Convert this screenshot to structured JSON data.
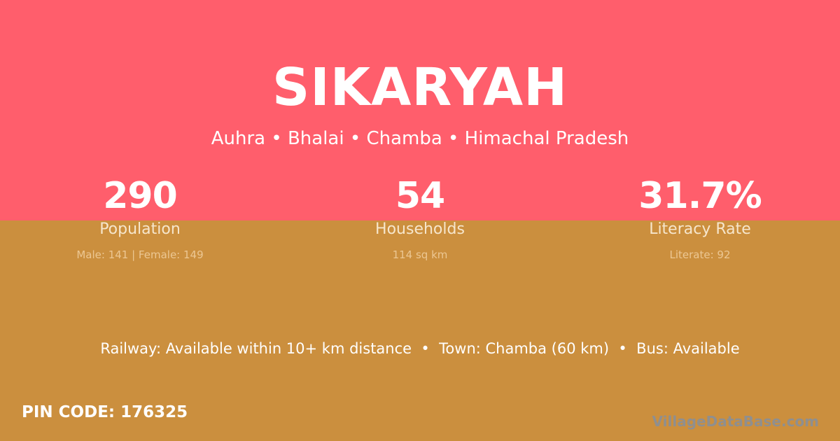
{
  "village": {
    "name": "SIKARYAH",
    "location": "Auhra • Bhalai • Chamba • Himachal Pradesh"
  },
  "stats": [
    {
      "value": "290",
      "label": "Population",
      "detail": "Male: 141 | Female: 149"
    },
    {
      "value": "54",
      "label": "Households",
      "detail": "114 sq km"
    },
    {
      "value": "31.7%",
      "label": "Literacy Rate",
      "detail": "Literate: 92"
    }
  ],
  "transport": "Railway: Available within 10+ km distance  •  Town: Chamba (60 km)  •  Bus: Available",
  "pin_code": "PIN CODE: 176325",
  "brand": "VillageDataBase.com",
  "colors": {
    "top": "#ff5e6c",
    "bottom": "#cb8f3e"
  }
}
